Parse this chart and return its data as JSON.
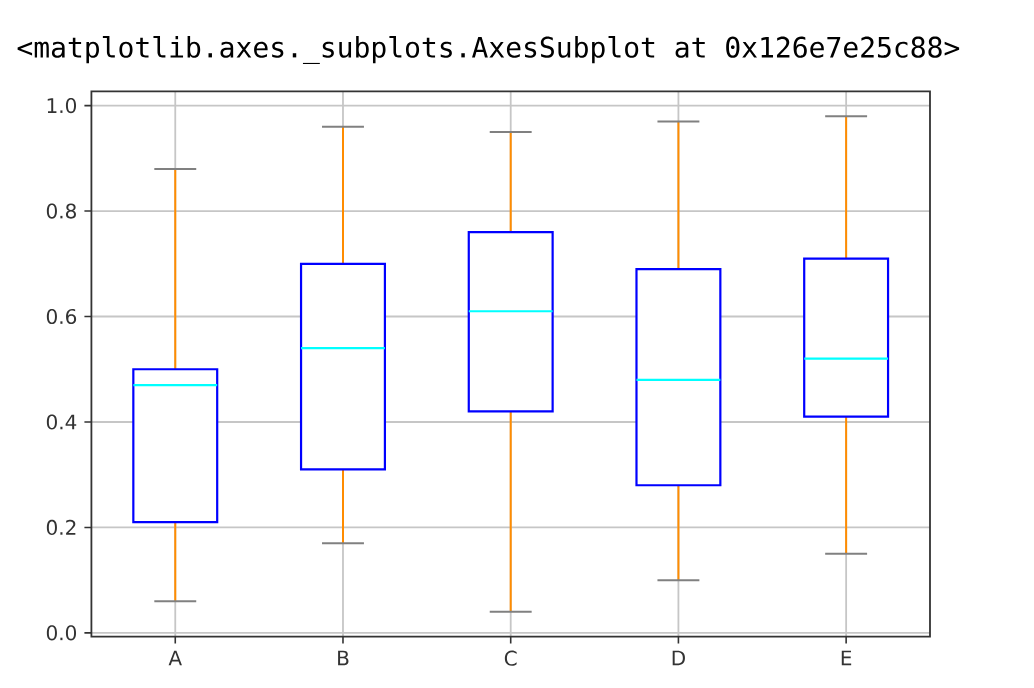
{
  "chart_data": {
    "type": "box",
    "categories": [
      "A",
      "B",
      "C",
      "D",
      "E"
    ],
    "boxes": [
      {
        "low": 0.06,
        "q1": 0.21,
        "median": 0.47,
        "q3": 0.5,
        "high": 0.88
      },
      {
        "low": 0.17,
        "q1": 0.31,
        "median": 0.54,
        "q3": 0.7,
        "high": 0.96
      },
      {
        "low": 0.04,
        "q1": 0.42,
        "median": 0.61,
        "q3": 0.76,
        "high": 0.95
      },
      {
        "low": 0.1,
        "q1": 0.28,
        "median": 0.48,
        "q3": 0.69,
        "high": 0.97
      },
      {
        "low": 0.15,
        "q1": 0.41,
        "median": 0.52,
        "q3": 0.71,
        "high": 0.98
      }
    ],
    "color": "#0000ff",
    "ylim": [
      -0.007,
      1.027
    ],
    "yticks": [
      {
        "value": 0,
        "label": "0.0"
      },
      0.2,
      0.4,
      0.6,
      0.8,
      {
        "value": 1,
        "label": "1.0"
      }
    ],
    "grid": true,
    "annotations": [
      "<matplotlib.axes._subplots.AxesSubplot at 0x126e7e25c88>"
    ]
  }
}
